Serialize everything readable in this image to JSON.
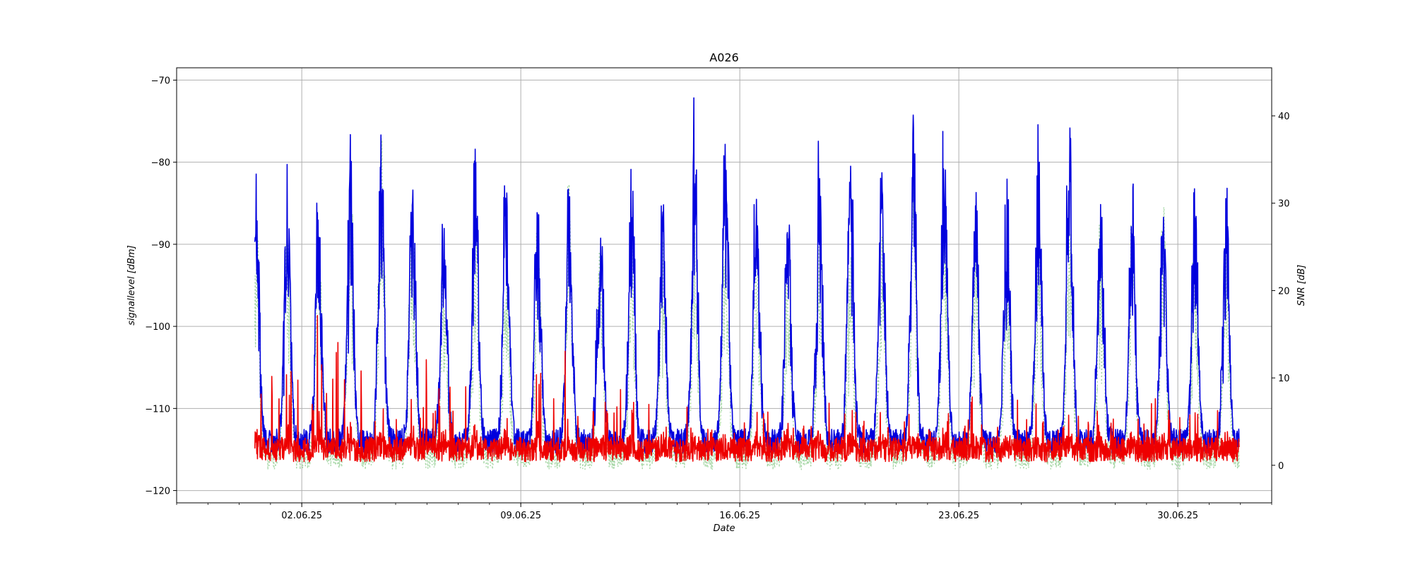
{
  "chart_data": {
    "type": "line",
    "title": "A026",
    "xlabel": "Date",
    "ylabel_left": "signallevel [dBm]",
    "ylabel_right": "SNR [dB]",
    "x_range": [
      "2025-05-29",
      "2025-07-03"
    ],
    "ylim_left": [
      -121.5,
      -68.5
    ],
    "ylim_right": [
      -4.3,
      45.5
    ],
    "y_ticks_left": [
      -70,
      -80,
      -90,
      -100,
      -110,
      -120
    ],
    "y_ticks_right": [
      40,
      30,
      20,
      10,
      0
    ],
    "x_ticks": [
      {
        "date": "2025-06-02",
        "label": "02.06.25"
      },
      {
        "date": "2025-06-09",
        "label": "09.06.25"
      },
      {
        "date": "2025-06-16",
        "label": "16.06.25"
      },
      {
        "date": "2025-06-23",
        "label": "23.06.25"
      },
      {
        "date": "2025-06-30",
        "label": "30.06.25"
      }
    ],
    "grid": true,
    "series": [
      {
        "axis": "right",
        "style": "dotted",
        "color": "#a8d8a8",
        "time_range": [
          "2025-05-31T12:00",
          "2025-07-01T23:00"
        ],
        "daily_peaks": [
          28,
          26,
          27,
          37,
          38,
          26,
          25,
          27,
          22,
          29,
          33,
          25,
          27,
          26,
          33,
          24,
          26,
          25,
          26,
          24,
          27,
          34,
          29,
          28,
          25,
          28,
          30,
          25,
          29,
          31,
          26
        ],
        "baseline": 1
      },
      {
        "axis": "left",
        "style": "solid",
        "color": "#0000dd",
        "time_range": [
          "2025-05-31T12:00",
          "2025-07-01T23:00"
        ],
        "daily_peaks": [
          -81,
          -80,
          -83,
          -76,
          -75,
          -83,
          -84,
          -75,
          -83,
          -85,
          -80,
          -85,
          -80,
          -85,
          -71,
          -75,
          -83,
          -85,
          -76,
          -74,
          -80,
          -73,
          -80,
          -80,
          -82,
          -73,
          -75,
          -85,
          -80,
          -82,
          -82
        ],
        "baseline": -114
      },
      {
        "axis": "left",
        "style": "solid",
        "color": "#ee0000",
        "time_range": [
          "2025-05-31T12:00",
          "2025-07-01T23:00"
        ],
        "daily_peaks": [
          -106,
          -105,
          -98,
          -104,
          -110,
          -104,
          -106,
          -102,
          -110,
          -104,
          -110,
          -108,
          -110,
          -111,
          -112,
          -112,
          -111,
          -111,
          -110,
          -111,
          -111,
          -112,
          -110,
          -111,
          -110,
          -111,
          -110,
          -110,
          -109,
          -110,
          -111
        ],
        "baseline": -115
      }
    ]
  }
}
